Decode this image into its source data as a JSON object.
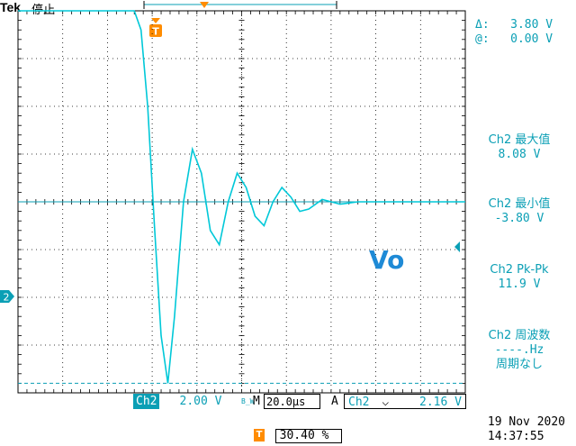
{
  "header": {
    "brand": "Tek",
    "run_state": "停止"
  },
  "trigger_position_marker": "T",
  "cursor_readout": {
    "delta_label": "Δ:",
    "delta_value": "3.80 V",
    "at_label": "@:",
    "at_value": "0.00 V"
  },
  "waveform_label": "Vo",
  "channel_marker": "2",
  "measurements": [
    {
      "label": "Ch2 最大值",
      "value": "8.08 V"
    },
    {
      "label": "Ch2 最小值",
      "value": "-3.80 V"
    },
    {
      "label": "Ch2 Pk-Pk",
      "value": "11.9 V"
    },
    {
      "label": "Ch2 周波数",
      "value": "----.Hz",
      "note": "周期なし"
    }
  ],
  "status_bar": {
    "channel": "Ch2",
    "volts_per_div": "2.00 V",
    "bandwidth_icon": "B_W",
    "horizontal_prefix": "M",
    "time_per_div": "20.0µs",
    "trigger_mode": "A",
    "trigger_channel": "Ch2",
    "trigger_slope_symbol": "⌐",
    "trigger_level": "2.16 V"
  },
  "trigger_offset": {
    "icon": "T",
    "value": "30.40 %"
  },
  "datetime": {
    "date": "19 Nov 2020",
    "time": "14:37:55"
  },
  "colors": {
    "trace": "#00c8d8",
    "accent": "#0a9fb5",
    "trigger_icon": "#ff8c00",
    "grid": "#000000"
  },
  "chart_data": {
    "type": "line",
    "xlabel": "",
    "ylabel": "",
    "xlim": [
      0,
      10
    ],
    "ylim": [
      -4,
      4
    ],
    "x_unit_per_div": "20.0µs",
    "y_unit_per_div": "2.00 V",
    "grid": true,
    "series": [
      {
        "name": "Vo",
        "x": [
          0,
          1.0,
          2.0,
          2.6,
          2.75,
          2.9,
          3.05,
          3.2,
          3.35,
          3.5,
          3.7,
          3.9,
          4.1,
          4.3,
          4.5,
          4.7,
          4.9,
          5.1,
          5.3,
          5.5,
          5.7,
          5.9,
          6.1,
          6.3,
          6.5,
          6.8,
          7.2,
          7.6,
          8.0,
          9.0,
          10.0
        ],
        "y": [
          4.0,
          4.0,
          4.0,
          4.0,
          3.6,
          2.0,
          -0.5,
          -2.8,
          -3.8,
          -2.4,
          0.0,
          1.1,
          0.6,
          -0.6,
          -0.9,
          0.0,
          0.6,
          0.3,
          -0.3,
          -0.5,
          0.0,
          0.3,
          0.1,
          -0.2,
          -0.15,
          0.05,
          -0.05,
          0.0,
          0.0,
          0.0,
          0.0
        ]
      }
    ]
  }
}
